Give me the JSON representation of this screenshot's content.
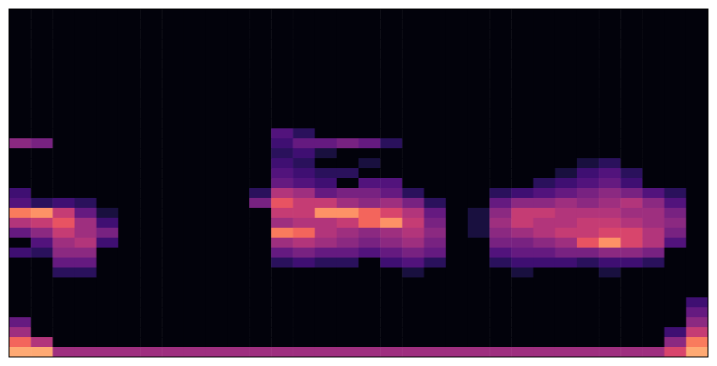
{
  "chart_data": {
    "type": "heatmap",
    "tick_labels": false,
    "cells": [
      [
        0,
        0,
        0,
        0,
        0,
        0,
        0,
        0,
        0,
        0,
        0,
        0,
        0,
        0,
        0,
        0,
        0,
        0,
        0,
        0,
        0,
        0,
        0,
        0,
        0,
        0,
        0,
        0,
        0,
        0,
        0,
        0
      ],
      [
        0,
        0,
        0,
        0,
        0,
        0,
        0,
        0,
        0,
        0,
        0,
        0,
        0,
        0,
        0,
        0,
        0,
        0,
        0,
        0,
        0,
        0,
        0,
        0,
        0,
        0,
        0,
        0,
        0,
        0,
        0,
        0
      ],
      [
        0,
        0,
        0,
        0,
        0,
        0,
        0,
        0,
        0,
        0,
        0,
        0,
        0,
        0,
        0,
        0,
        0,
        0,
        0,
        0,
        0,
        0,
        0,
        0,
        0,
        0,
        0,
        0,
        0,
        0,
        0,
        0
      ],
      [
        0,
        0,
        0,
        0,
        0,
        0,
        0,
        0,
        0,
        0,
        0,
        0,
        0,
        0,
        0,
        0,
        0,
        0,
        0,
        0,
        0,
        0,
        0,
        0,
        0,
        0,
        0,
        0,
        0,
        0,
        0,
        0
      ],
      [
        0,
        0,
        0,
        0,
        0,
        0,
        0,
        0,
        0,
        0,
        0,
        0,
        0,
        0,
        0,
        0,
        0,
        0,
        0,
        0,
        0,
        0,
        0,
        0,
        0,
        0,
        0,
        0,
        0,
        0,
        0,
        0
      ],
      [
        0,
        0,
        0,
        0,
        0,
        0,
        0,
        0,
        0,
        0,
        0,
        0,
        0,
        0,
        0,
        0,
        0,
        0,
        0,
        0,
        0,
        0,
        0,
        0,
        0,
        0,
        0,
        0,
        0,
        0,
        0,
        0
      ],
      [
        0,
        0,
        0,
        0,
        0,
        0,
        0,
        0,
        0,
        0,
        0,
        0,
        0,
        0,
        0,
        0,
        0,
        0,
        0,
        0,
        0,
        0,
        0,
        0,
        0,
        0,
        0,
        0,
        0,
        0,
        0,
        0
      ],
      [
        0,
        0,
        0,
        0,
        0,
        0,
        0,
        0,
        0,
        0,
        0,
        0,
        0,
        0,
        0,
        0,
        0,
        0,
        0,
        0,
        0,
        0,
        0,
        0,
        0,
        0,
        0,
        0,
        0,
        0,
        0,
        0
      ],
      [
        0,
        0,
        0,
        0,
        0,
        0,
        0,
        0,
        0,
        0,
        0,
        0,
        0,
        0,
        0,
        0,
        0,
        0,
        0,
        0,
        0,
        0,
        0,
        0,
        0,
        0,
        0,
        0,
        0,
        0,
        0,
        0
      ],
      [
        0,
        0,
        0,
        0,
        0,
        0,
        0,
        0,
        0,
        0,
        0,
        0,
        0,
        0,
        0,
        0,
        0,
        0,
        0,
        0,
        0,
        0,
        0,
        0,
        0,
        0,
        0,
        0,
        0,
        0,
        0,
        0
      ],
      [
        0,
        0,
        0,
        0,
        0,
        0,
        0,
        0,
        0,
        0,
        0,
        0,
        0,
        0,
        0,
        0,
        0,
        0,
        0,
        0,
        0,
        0,
        0,
        0,
        0,
        0,
        0,
        0,
        0,
        0,
        0,
        0
      ],
      [
        0,
        0,
        0,
        0,
        0,
        0,
        0,
        0,
        0,
        0,
        0,
        0,
        0,
        0,
        0,
        0,
        0,
        0,
        0,
        0,
        0,
        0,
        0,
        0,
        0,
        0,
        0,
        0,
        0,
        0,
        0,
        0
      ],
      [
        0,
        0,
        0,
        0,
        0,
        0,
        0,
        0,
        0,
        0,
        0,
        0,
        25,
        15,
        0,
        0,
        0,
        0,
        0,
        0,
        0,
        0,
        0,
        0,
        0,
        0,
        0,
        0,
        0,
        0,
        0,
        0
      ],
      [
        40,
        35,
        0,
        0,
        0,
        0,
        0,
        0,
        0,
        0,
        0,
        0,
        20,
        30,
        30,
        35,
        30,
        15,
        0,
        0,
        0,
        0,
        0,
        0,
        0,
        0,
        0,
        0,
        0,
        0,
        0,
        0
      ],
      [
        0,
        0,
        0,
        0,
        0,
        0,
        0,
        0,
        0,
        0,
        0,
        0,
        15,
        20,
        10,
        0,
        0,
        0,
        0,
        0,
        0,
        0,
        0,
        0,
        0,
        0,
        0,
        0,
        0,
        0,
        0,
        0
      ],
      [
        0,
        0,
        0,
        0,
        0,
        0,
        0,
        0,
        0,
        0,
        0,
        0,
        20,
        15,
        0,
        0,
        10,
        0,
        0,
        0,
        0,
        0,
        0,
        0,
        0,
        0,
        10,
        15,
        0,
        0,
        0,
        0
      ],
      [
        0,
        0,
        0,
        0,
        0,
        0,
        0,
        0,
        0,
        0,
        0,
        0,
        25,
        20,
        15,
        15,
        0,
        0,
        0,
        0,
        0,
        0,
        0,
        0,
        0,
        10,
        20,
        25,
        15,
        0,
        0,
        0
      ],
      [
        0,
        0,
        0,
        0,
        0,
        0,
        0,
        0,
        0,
        0,
        0,
        0,
        30,
        25,
        20,
        0,
        25,
        25,
        0,
        0,
        0,
        0,
        0,
        0,
        15,
        20,
        25,
        30,
        20,
        0,
        0,
        0
      ],
      [
        20,
        0,
        0,
        0,
        0,
        0,
        0,
        0,
        0,
        0,
        0,
        15,
        50,
        45,
        30,
        35,
        35,
        30,
        15,
        0,
        0,
        0,
        15,
        20,
        25,
        30,
        35,
        40,
        35,
        25,
        15,
        0
      ],
      [
        25,
        15,
        20,
        15,
        0,
        0,
        0,
        0,
        0,
        0,
        0,
        35,
        65,
        55,
        55,
        45,
        40,
        45,
        35,
        15,
        0,
        0,
        30,
        40,
        40,
        45,
        40,
        45,
        50,
        40,
        25,
        0
      ],
      [
        75,
        80,
        55,
        30,
        10,
        0,
        0,
        0,
        0,
        0,
        0,
        0,
        55,
        55,
        80,
        80,
        70,
        60,
        50,
        30,
        0,
        10,
        40,
        55,
        55,
        50,
        50,
        50,
        45,
        45,
        35,
        0
      ],
      [
        50,
        55,
        65,
        45,
        20,
        0,
        0,
        0,
        0,
        0,
        0,
        0,
        45,
        50,
        50,
        55,
        70,
        80,
        55,
        35,
        0,
        10,
        45,
        55,
        50,
        50,
        55,
        55,
        50,
        45,
        40,
        0
      ],
      [
        30,
        40,
        55,
        45,
        35,
        0,
        0,
        0,
        0,
        0,
        0,
        0,
        75,
        70,
        50,
        45,
        40,
        45,
        50,
        40,
        0,
        10,
        40,
        45,
        50,
        55,
        55,
        60,
        60,
        50,
        35,
        0
      ],
      [
        0,
        25,
        45,
        50,
        20,
        0,
        0,
        0,
        0,
        0,
        0,
        0,
        45,
        50,
        45,
        40,
        35,
        40,
        45,
        35,
        0,
        0,
        35,
        35,
        40,
        45,
        65,
        80,
        60,
        50,
        25,
        0
      ],
      [
        20,
        15,
        40,
        40,
        0,
        0,
        0,
        0,
        0,
        0,
        0,
        0,
        30,
        35,
        30,
        30,
        25,
        30,
        35,
        30,
        0,
        0,
        25,
        30,
        30,
        35,
        35,
        40,
        40,
        35,
        0,
        0
      ],
      [
        0,
        0,
        30,
        30,
        0,
        0,
        0,
        0,
        0,
        0,
        0,
        0,
        15,
        20,
        15,
        15,
        0,
        20,
        25,
        15,
        0,
        0,
        15,
        20,
        20,
        20,
        15,
        20,
        20,
        15,
        0,
        0
      ],
      [
        0,
        0,
        15,
        15,
        0,
        0,
        0,
        0,
        0,
        0,
        0,
        0,
        0,
        0,
        0,
        0,
        0,
        0,
        10,
        0,
        0,
        0,
        0,
        10,
        0,
        0,
        0,
        10,
        0,
        0,
        0,
        0
      ],
      [
        0,
        0,
        0,
        0,
        0,
        0,
        0,
        0,
        0,
        0,
        0,
        0,
        0,
        0,
        0,
        0,
        0,
        0,
        0,
        0,
        0,
        0,
        0,
        0,
        0,
        0,
        0,
        0,
        0,
        0,
        0,
        0
      ],
      [
        0,
        0,
        0,
        0,
        0,
        0,
        0,
        0,
        0,
        0,
        0,
        0,
        0,
        0,
        0,
        0,
        0,
        0,
        0,
        0,
        0,
        0,
        0,
        0,
        0,
        0,
        0,
        0,
        0,
        0,
        0,
        0
      ],
      [
        0,
        0,
        0,
        0,
        0,
        0,
        0,
        0,
        0,
        0,
        0,
        0,
        0,
        0,
        0,
        0,
        0,
        0,
        0,
        0,
        0,
        0,
        0,
        0,
        0,
        0,
        0,
        0,
        0,
        0,
        0,
        20
      ],
      [
        0,
        0,
        0,
        0,
        0,
        0,
        0,
        0,
        0,
        0,
        0,
        0,
        0,
        0,
        0,
        0,
        0,
        0,
        0,
        0,
        0,
        0,
        0,
        0,
        0,
        0,
        0,
        0,
        0,
        0,
        0,
        30
      ],
      [
        30,
        0,
        0,
        0,
        0,
        0,
        0,
        0,
        0,
        0,
        0,
        0,
        0,
        0,
        0,
        0,
        0,
        0,
        0,
        0,
        0,
        0,
        0,
        0,
        0,
        0,
        0,
        0,
        0,
        0,
        0,
        40
      ],
      [
        45,
        0,
        0,
        0,
        0,
        0,
        0,
        0,
        0,
        0,
        0,
        0,
        0,
        0,
        0,
        0,
        0,
        0,
        0,
        0,
        0,
        0,
        0,
        0,
        0,
        0,
        0,
        0,
        0,
        0,
        20,
        55
      ],
      [
        70,
        50,
        0,
        0,
        0,
        0,
        0,
        0,
        0,
        0,
        0,
        0,
        0,
        0,
        0,
        0,
        0,
        0,
        0,
        0,
        0,
        0,
        0,
        0,
        0,
        0,
        0,
        0,
        0,
        0,
        40,
        75
      ],
      [
        85,
        85,
        45,
        45,
        45,
        45,
        45,
        45,
        45,
        45,
        45,
        45,
        45,
        45,
        45,
        45,
        45,
        45,
        45,
        45,
        45,
        45,
        45,
        45,
        45,
        45,
        45,
        45,
        45,
        45,
        60,
        85
      ]
    ]
  }
}
